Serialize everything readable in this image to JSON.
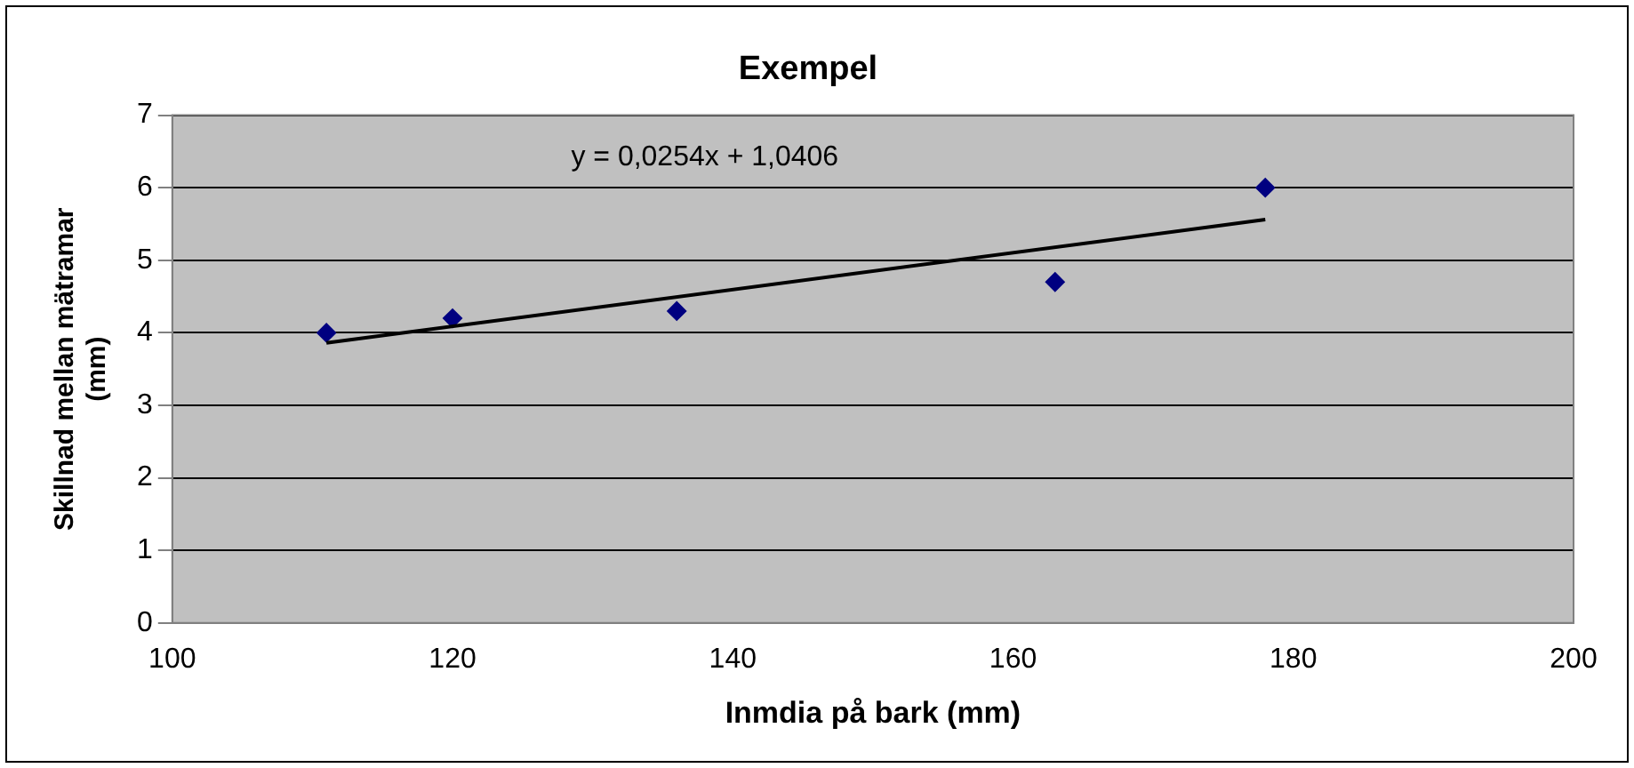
{
  "chart_data": {
    "type": "scatter",
    "title": "Exempel",
    "xlabel": "Inmdia på bark (mm)",
    "ylabel": "Skillnad mellan mätramar (mm)",
    "xlim": [
      100,
      200
    ],
    "xticks": [
      100,
      120,
      140,
      160,
      180,
      200
    ],
    "ylim": [
      0,
      7
    ],
    "yticks": [
      0,
      1,
      2,
      3,
      4,
      5,
      6,
      7
    ],
    "grid": "y",
    "legend": false,
    "annotations": [
      "y = 0,0254x + 1,0406"
    ],
    "series": [
      {
        "type": "scatter",
        "color": "#000080",
        "marker": "diamond",
        "x": [
          111,
          120,
          136,
          163,
          178
        ],
        "values": [
          4.0,
          4.2,
          4.3,
          4.7,
          6.0
        ]
      },
      {
        "type": "line",
        "color": "#000000",
        "marker": "none",
        "x": [
          111,
          178
        ],
        "values": [
          3.86,
          5.56
        ]
      }
    ]
  }
}
